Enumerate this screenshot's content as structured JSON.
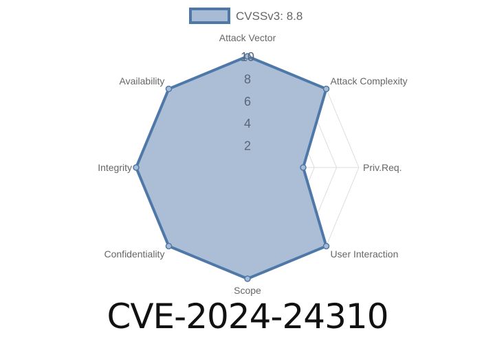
{
  "chart_data": {
    "type": "radar",
    "legend": {
      "label": "CVSSv3: 8.8",
      "position": "top"
    },
    "axes": [
      "Attack Vector",
      "Attack Complexity",
      "Priv.Req.",
      "User Interaction",
      "Scope",
      "Confidentiality",
      "Integrity",
      "Availability"
    ],
    "series": [
      {
        "name": "CVSSv3: 8.8",
        "values": [
          10,
          10,
          5,
          10,
          10,
          10,
          10,
          10
        ]
      }
    ],
    "rlim": [
      0,
      10
    ],
    "ticks": [
      "2",
      "4",
      "6",
      "8",
      "10"
    ],
    "colors": {
      "line": "#4e78a8",
      "fill": "#a7bbd4",
      "grid": "#dddddd",
      "label": "#666666"
    }
  },
  "title": "CVE-2024-24310"
}
